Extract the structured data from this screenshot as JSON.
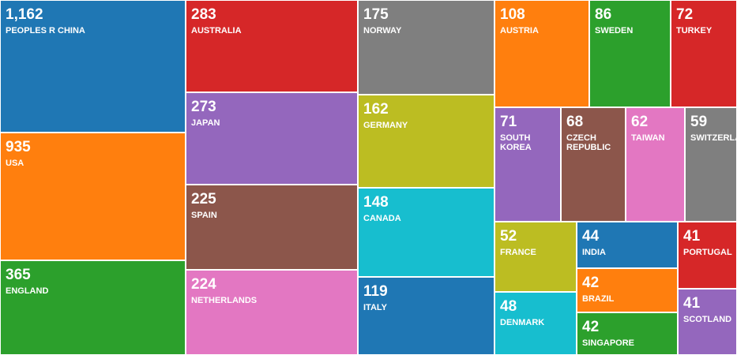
{
  "chart_data": {
    "type": "treemap",
    "items": [
      {
        "label": "PEOPLES R CHINA",
        "display": "1,162",
        "value": 1162,
        "color": "#1f77b4"
      },
      {
        "label": "USA",
        "display": "935",
        "value": 935,
        "color": "#ff7f0e"
      },
      {
        "label": "ENGLAND",
        "display": "365",
        "value": 365,
        "color": "#2ca02c"
      },
      {
        "label": "AUSTRALIA",
        "display": "283",
        "value": 283,
        "color": "#d62728"
      },
      {
        "label": "JAPAN",
        "display": "273",
        "value": 273,
        "color": "#9467bd"
      },
      {
        "label": "SPAIN",
        "display": "225",
        "value": 225,
        "color": "#8c564b"
      },
      {
        "label": "NETHERLANDS",
        "display": "224",
        "value": 224,
        "color": "#e377c2"
      },
      {
        "label": "NORWAY",
        "display": "175",
        "value": 175,
        "color": "#7f7f7f"
      },
      {
        "label": "GERMANY",
        "display": "162",
        "value": 162,
        "color": "#bcbd22"
      },
      {
        "label": "CANADA",
        "display": "148",
        "value": 148,
        "color": "#17becf"
      },
      {
        "label": "ITALY",
        "display": "119",
        "value": 119,
        "color": "#1f77b4"
      },
      {
        "label": "AUSTRIA",
        "display": "108",
        "value": 108,
        "color": "#ff7f0e"
      },
      {
        "label": "SWEDEN",
        "display": "86",
        "value": 86,
        "color": "#2ca02c"
      },
      {
        "label": "TURKEY",
        "display": "72",
        "value": 72,
        "color": "#d62728"
      },
      {
        "label": "SOUTH KOREA",
        "display": "71",
        "value": 71,
        "color": "#9467bd"
      },
      {
        "label": "CZECH REPUBLIC",
        "display": "68",
        "value": 68,
        "color": "#8c564b"
      },
      {
        "label": "TAIWAN",
        "display": "62",
        "value": 62,
        "color": "#e377c2"
      },
      {
        "label": "SWITZERLAND",
        "display": "59",
        "value": 59,
        "color": "#7f7f7f"
      },
      {
        "label": "FRANCE",
        "display": "52",
        "value": 52,
        "color": "#bcbd22"
      },
      {
        "label": "DENMARK",
        "display": "48",
        "value": 48,
        "color": "#17becf"
      },
      {
        "label": "INDIA",
        "display": "44",
        "value": 44,
        "color": "#1f77b4"
      },
      {
        "label": "BRAZIL",
        "display": "42",
        "value": 42,
        "color": "#ff7f0e"
      },
      {
        "label": "SINGAPORE",
        "display": "42",
        "value": 42,
        "color": "#2ca02c"
      },
      {
        "label": "PORTUGAL",
        "display": "41",
        "value": 41,
        "color": "#d62728"
      },
      {
        "label": "SCOTLAND",
        "display": "41",
        "value": 41,
        "color": "#9467bd"
      }
    ]
  }
}
